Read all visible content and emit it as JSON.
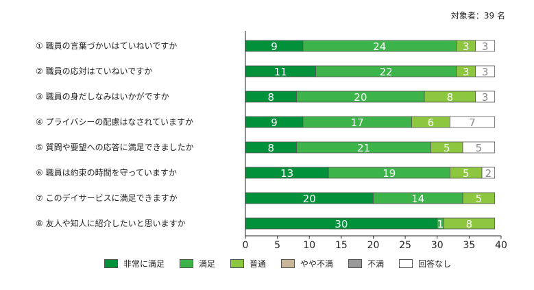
{
  "respondents_label": "対象者：39 名",
  "chart_data": {
    "type": "bar",
    "orientation": "horizontal",
    "stacked": true,
    "categories": [
      "① 職員の言葉づかいはていねいですか",
      "② 職員の応対はていねいですか",
      "③ 職員の身だしなみはいかがですか",
      "④ プライバシーの配慮はなされていますか",
      "⑤ 質問や要望への応答に満足できましたか",
      "⑥ 職員は約束の時間を守っていますか",
      "⑦ このデイサービスに満足できますか",
      "⑧ 友人や知人に紹介したいと思いますか"
    ],
    "series": [
      {
        "name": "非常に満足",
        "color": "#00913a",
        "values": [
          9,
          11,
          8,
          9,
          8,
          13,
          20,
          30
        ]
      },
      {
        "name": "満足",
        "color": "#3cb449",
        "values": [
          24,
          22,
          20,
          17,
          21,
          19,
          14,
          1
        ]
      },
      {
        "name": "普通",
        "color": "#8dc63f",
        "values": [
          3,
          3,
          8,
          6,
          5,
          5,
          5,
          8
        ]
      },
      {
        "name": "やや不満",
        "color": "#c9b59a",
        "values": [
          0,
          0,
          0,
          0,
          0,
          0,
          0,
          0
        ]
      },
      {
        "name": "不満",
        "color": "#999999",
        "values": [
          0,
          0,
          0,
          0,
          0,
          0,
          0,
          0
        ]
      },
      {
        "name": "回答なし",
        "color": "#ffffff",
        "values": [
          3,
          3,
          3,
          7,
          5,
          2,
          0,
          0
        ]
      }
    ],
    "xlim": [
      0,
      40
    ],
    "xticks": [
      0,
      5,
      10,
      15,
      20,
      25,
      30,
      35,
      40
    ],
    "legend_position": "bottom",
    "grid": false
  }
}
